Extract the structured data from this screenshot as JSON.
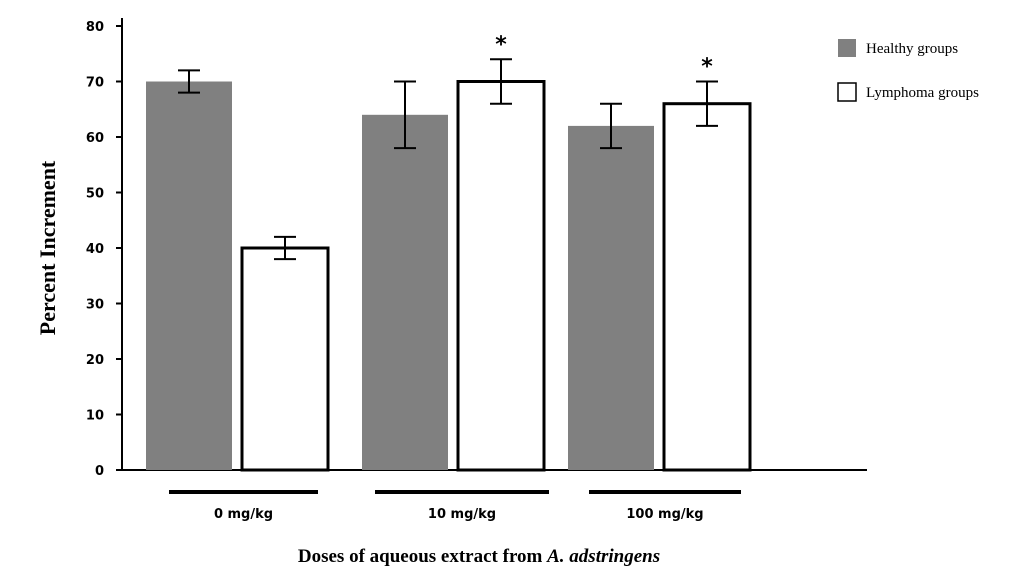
{
  "chart_data": {
    "type": "bar",
    "xlabel_prefix": "Doses of aqueous extract from ",
    "xlabel_italic": "A. adstringens",
    "ylabel": "Percent Increment",
    "ylim": [
      0,
      80
    ],
    "yticks": [
      0,
      10,
      20,
      30,
      40,
      50,
      60,
      70,
      80
    ],
    "categories": [
      "0 mg/kg",
      "10 mg/kg",
      "100 mg/kg"
    ],
    "series": [
      {
        "name": "Healthy groups",
        "color": "#808080",
        "values": [
          70,
          64,
          62
        ],
        "errors": [
          2,
          6,
          4
        ],
        "significance": [
          "",
          "",
          ""
        ]
      },
      {
        "name": "Lymphoma groups",
        "color": "#ffffff",
        "values": [
          40,
          70,
          66
        ],
        "errors": [
          2,
          4,
          4
        ],
        "significance": [
          "",
          "*",
          "*"
        ]
      }
    ],
    "legend_position": "top-right",
    "grid": false
  }
}
